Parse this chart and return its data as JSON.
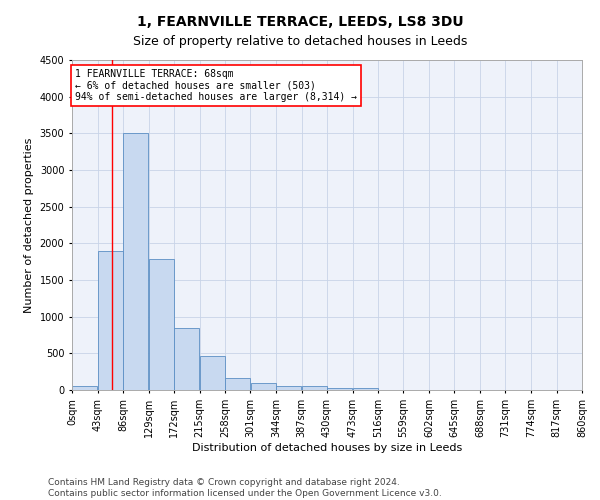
{
  "title": "1, FEARNVILLE TERRACE, LEEDS, LS8 3DU",
  "subtitle": "Size of property relative to detached houses in Leeds",
  "xlabel": "Distribution of detached houses by size in Leeds",
  "ylabel": "Number of detached properties",
  "bar_color": "#c8d9f0",
  "bar_edge_color": "#5b8ec4",
  "grid_color": "#c8d4e8",
  "background_color": "#eef2fa",
  "vline_x": 68,
  "vline_color": "red",
  "annotation_line1": "1 FEARNVILLE TERRACE: 68sqm",
  "annotation_line2": "← 6% of detached houses are smaller (503)",
  "annotation_line3": "94% of semi-detached houses are larger (8,314) →",
  "annotation_box_color": "white",
  "annotation_edge_color": "red",
  "bins": [
    0,
    43,
    86,
    129,
    172,
    215,
    258,
    301,
    344,
    387,
    430,
    473,
    516,
    559,
    602,
    645,
    688,
    731,
    774,
    817,
    860
  ],
  "bar_heights": [
    50,
    1900,
    3500,
    1790,
    840,
    460,
    160,
    90,
    60,
    55,
    30,
    30,
    0,
    0,
    0,
    0,
    0,
    0,
    0,
    0
  ],
  "ylim": [
    0,
    4500
  ],
  "yticks": [
    0,
    500,
    1000,
    1500,
    2000,
    2500,
    3000,
    3500,
    4000,
    4500
  ],
  "tick_labels": [
    "0sqm",
    "43sqm",
    "86sqm",
    "129sqm",
    "172sqm",
    "215sqm",
    "258sqm",
    "301sqm",
    "344sqm",
    "387sqm",
    "430sqm",
    "473sqm",
    "516sqm",
    "559sqm",
    "602sqm",
    "645sqm",
    "688sqm",
    "731sqm",
    "774sqm",
    "817sqm",
    "860sqm"
  ],
  "footer_line1": "Contains HM Land Registry data © Crown copyright and database right 2024.",
  "footer_line2": "Contains public sector information licensed under the Open Government Licence v3.0.",
  "title_fontsize": 10,
  "subtitle_fontsize": 9,
  "axis_label_fontsize": 8,
  "tick_fontsize": 7,
  "annotation_fontsize": 7,
  "footer_fontsize": 6.5
}
